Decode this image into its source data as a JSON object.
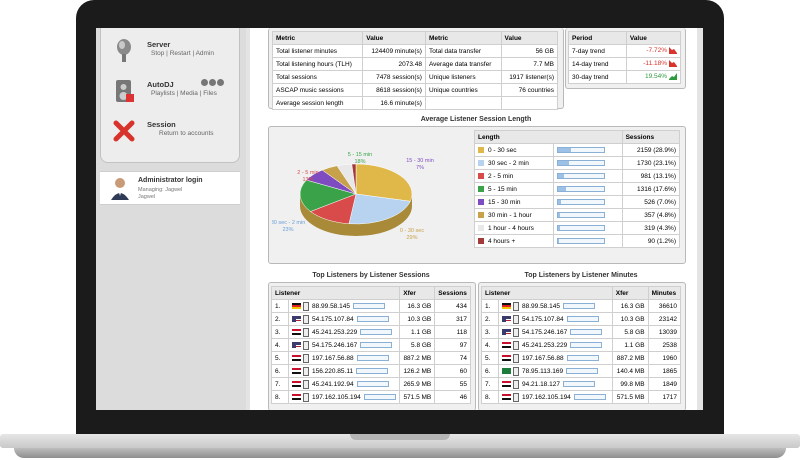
{
  "sidebar": {
    "items": [
      {
        "title": "Server",
        "links": [
          "Stop",
          "Restart",
          "Admin"
        ]
      },
      {
        "title": "AutoDJ",
        "links": [
          "Playlists",
          "Media",
          "Files"
        ]
      },
      {
        "title": "Session",
        "links": [
          "Return to accounts"
        ]
      }
    ],
    "admin": {
      "title": "Administrator login",
      "sub1": "Managing: Jagwel",
      "sub2": "Jagwel"
    }
  },
  "metrics": {
    "headers": [
      "Metric",
      "Value",
      "Metric",
      "Value"
    ],
    "rows": [
      [
        "Total listener minutes",
        "124409 minute(s)",
        "Total data transfer",
        "56 GB"
      ],
      [
        "Total listening hours (TLH)",
        "2073.48",
        "Average data transfer",
        "7.7 MB"
      ],
      [
        "Total sessions",
        "7478 session(s)",
        "Unique listeners",
        "1917 listener(s)"
      ],
      [
        "ASCAP music sessions",
        "8618 session(s)",
        "Unique countries",
        "76 countries"
      ],
      [
        "Average session length",
        "16.6 minute(s)",
        "",
        ""
      ]
    ]
  },
  "trends": {
    "headers": [
      "Period",
      "Value"
    ],
    "rows": [
      {
        "period": "7-day trend",
        "value": "-7.72%",
        "dir": "down"
      },
      {
        "period": "14-day trend",
        "value": "-11.18%",
        "dir": "down"
      },
      {
        "period": "30-day trend",
        "value": "19.54%",
        "dir": "up"
      }
    ]
  },
  "session_length": {
    "title": "Average Listener Session Length",
    "headers": [
      "Length",
      "Sessions"
    ],
    "rows": [
      {
        "label": "0 - 30 sec",
        "value": "2159 (28.9%)",
        "pct": 28.9,
        "color": "#e0b84a"
      },
      {
        "label": "30 sec - 2 min",
        "value": "1730 (23.1%)",
        "pct": 23.1,
        "color": "#b7d3f0"
      },
      {
        "label": "2 - 5 min",
        "value": "981 (13.1%)",
        "pct": 13.1,
        "color": "#d94a4a"
      },
      {
        "label": "5 - 15 min",
        "value": "1316 (17.6%)",
        "pct": 17.6,
        "color": "#3aa34a"
      },
      {
        "label": "15 - 30 min",
        "value": "526 (7.0%)",
        "pct": 7.0,
        "color": "#7e4bc1"
      },
      {
        "label": "30 min - 1 hour",
        "value": "357 (4.8%)",
        "pct": 4.8,
        "color": "#c8a24a"
      },
      {
        "label": "1 hour - 4 hours",
        "value": "319 (4.3%)",
        "pct": 4.3,
        "color": "#e8e8e8"
      },
      {
        "label": "4 hours +",
        "value": "90 (1.2%)",
        "pct": 1.2,
        "color": "#a33a3a"
      }
    ],
    "pie_labels": [
      {
        "label": "5 - 15 min",
        "pct": "18%",
        "color": "#3aa34a"
      },
      {
        "label": "15 - 30 min",
        "pct": "7%",
        "color": "#7e4bc1"
      },
      {
        "label": "2 - 5 min",
        "pct": "13%",
        "color": "#d94a4a"
      },
      {
        "label": "30 sec - 2 min",
        "pct": "23%",
        "color": "#6a9fd6"
      },
      {
        "label": "0 - 30 sec",
        "pct": "29%",
        "color": "#c8a24a"
      }
    ]
  },
  "top_by_sessions": {
    "title": "Top Listeners by Listener Sessions",
    "headers": [
      "Listener",
      "Xfer",
      "Sessions"
    ],
    "rows": [
      {
        "rank": "1.",
        "ip": "88.99.58.145",
        "xfer": "16.3 GB",
        "val": "434",
        "flag": "de"
      },
      {
        "rank": "2.",
        "ip": "54.175.107.84",
        "xfer": "10.3 GB",
        "val": "317",
        "flag": "us"
      },
      {
        "rank": "3.",
        "ip": "45.241.253.229",
        "xfer": "1.1 GB",
        "val": "118",
        "flag": "eg"
      },
      {
        "rank": "4.",
        "ip": "54.175.246.167",
        "xfer": "5.8 GB",
        "val": "97",
        "flag": "us"
      },
      {
        "rank": "5.",
        "ip": "197.167.56.88",
        "xfer": "887.2 MB",
        "val": "74",
        "flag": "eg"
      },
      {
        "rank": "6.",
        "ip": "156.220.85.11",
        "xfer": "126.2 MB",
        "val": "60",
        "flag": "eg"
      },
      {
        "rank": "7.",
        "ip": "45.241.192.94",
        "xfer": "265.9 MB",
        "val": "55",
        "flag": "eg"
      },
      {
        "rank": "8.",
        "ip": "197.162.105.194",
        "xfer": "571.5 MB",
        "val": "46",
        "flag": "eg"
      }
    ]
  },
  "top_by_minutes": {
    "title": "Top Listeners by Listener Minutes",
    "headers": [
      "Listener",
      "Xfer",
      "Minutes"
    ],
    "rows": [
      {
        "rank": "1.",
        "ip": "88.99.58.145",
        "xfer": "16.3 GB",
        "val": "36610",
        "flag": "de"
      },
      {
        "rank": "2.",
        "ip": "54.175.107.84",
        "xfer": "10.3 GB",
        "val": "23142",
        "flag": "us"
      },
      {
        "rank": "3.",
        "ip": "54.175.246.167",
        "xfer": "5.8 GB",
        "val": "13039",
        "flag": "us"
      },
      {
        "rank": "4.",
        "ip": "45.241.253.229",
        "xfer": "1.1 GB",
        "val": "2538",
        "flag": "eg"
      },
      {
        "rank": "5.",
        "ip": "197.167.56.88",
        "xfer": "887.2 MB",
        "val": "1960",
        "flag": "eg"
      },
      {
        "rank": "6.",
        "ip": "78.95.113.169",
        "xfer": "140.4 MB",
        "val": "1865",
        "flag": "sa"
      },
      {
        "rank": "7.",
        "ip": "94.21.18.127",
        "xfer": "99.8 MB",
        "val": "1849",
        "flag": "eg"
      },
      {
        "rank": "8.",
        "ip": "197.162.105.194",
        "xfer": "571.5 MB",
        "val": "1717",
        "flag": "eg"
      }
    ]
  },
  "colors": {
    "down": "#d9342b",
    "up": "#2e9a3e",
    "bar_border": "#8ab0d6",
    "bar_fill": "#9cc0e6"
  }
}
